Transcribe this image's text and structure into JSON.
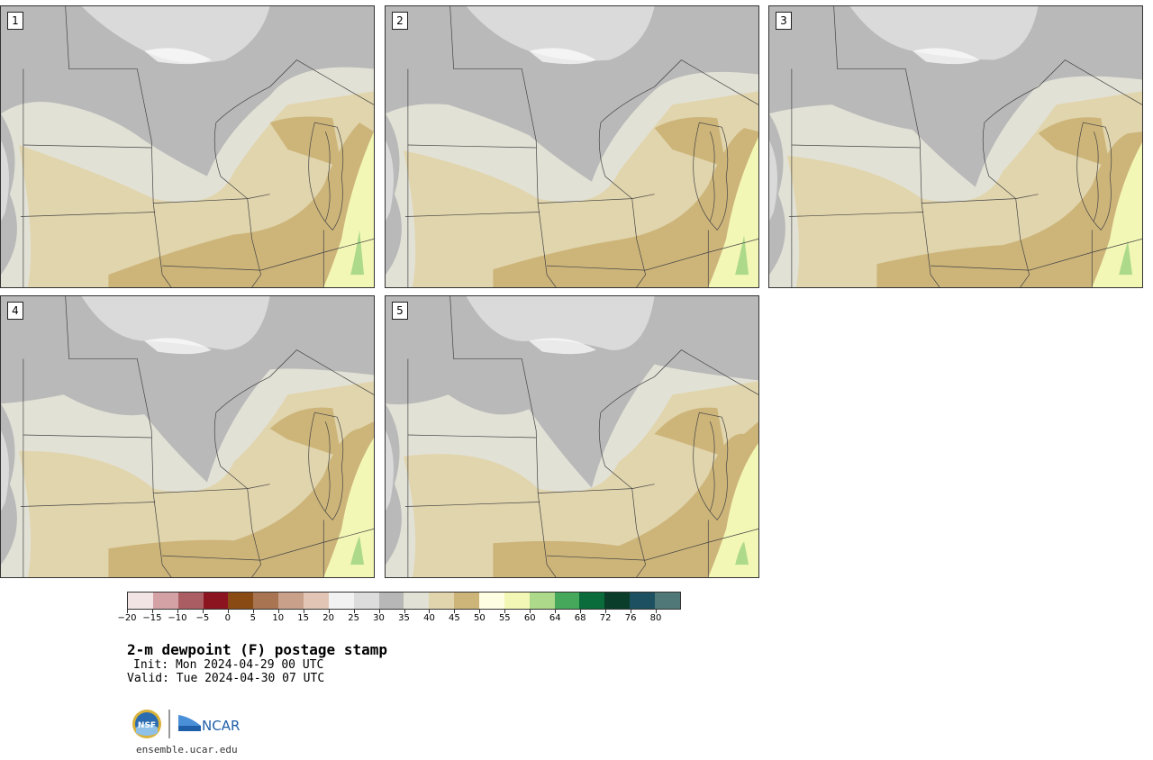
{
  "panels": [
    {
      "label": "1",
      "variant": 0
    },
    {
      "label": "2",
      "variant": 1
    },
    {
      "label": "3",
      "variant": 2
    },
    {
      "label": "4",
      "variant": 3
    },
    {
      "label": "5",
      "variant": 4
    }
  ],
  "colorbar": {
    "colors": [
      "#f2e4e4",
      "#d4a2a5",
      "#aa5e63",
      "#8b1420",
      "#8a4a14",
      "#a87452",
      "#c9a18b",
      "#e2c5b5",
      "#f2f2f2",
      "#dcdcdc",
      "#b7b7b7",
      "#e2e1d6",
      "#e1d5ad",
      "#cdb57a",
      "#fefee3",
      "#f3f7b5",
      "#acd98a",
      "#45a85b",
      "#0a6b3b",
      "#0a3e2a",
      "#1d5060",
      "#517878"
    ],
    "ticks": [
      "−20",
      "−15",
      "−10",
      "−5",
      "0",
      "5",
      "10",
      "15",
      "20",
      "25",
      "30",
      "35",
      "40",
      "45",
      "50",
      "55",
      "60",
      "64",
      "68",
      "72",
      "76",
      "80"
    ]
  },
  "title": "2-m dewpoint (F) postage stamp",
  "init": "Init: Mon 2024-04-29 00 UTC",
  "valid": "Valid: Tue 2024-04-30 07 UTC",
  "logos": {
    "nsf": "NSF",
    "ncar": "NCAR"
  },
  "site": "ensemble.ucar.edu",
  "map_colors": {
    "gray": "#b9b9b9",
    "lightgray": "#dadada",
    "bg": "#e2e1d6",
    "tan": "#e1d5ad",
    "brown": "#cdb57a",
    "yellow": "#f3f7b5",
    "green": "#acd98a",
    "white": "#ffffff"
  }
}
